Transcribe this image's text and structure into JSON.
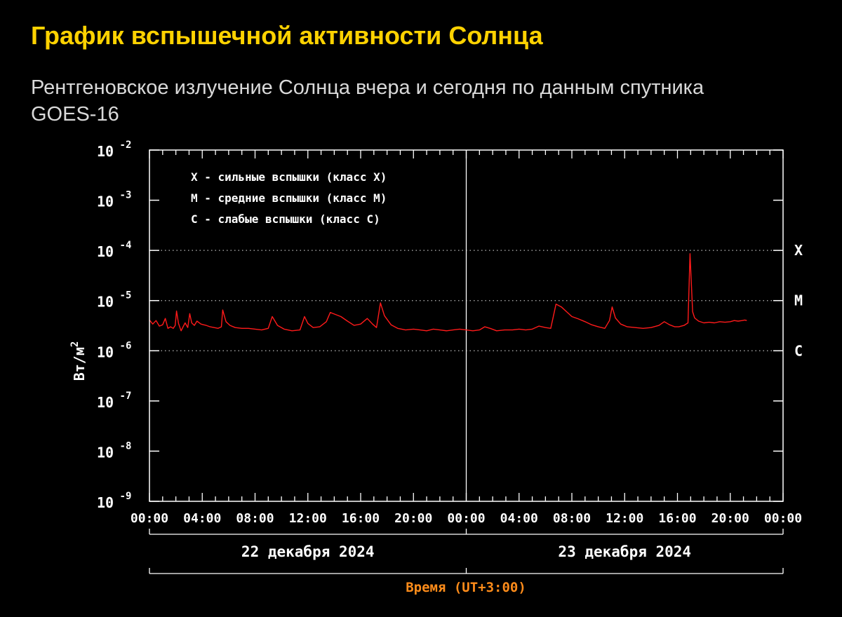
{
  "page": {
    "title": "График вспышечной активности Солнца",
    "subtitle": "Рентгеновское излучение Солнца вчера и сегодня по данным спутника GOES-16"
  },
  "chart_data": {
    "type": "line",
    "title": "",
    "xlabel": "Время (UT+3:00)",
    "ylabel": "Вт/м",
    "ylabel_sup": "2",
    "yscale": "log",
    "ylim": [
      1e-09,
      0.01
    ],
    "y_ticks": [
      {
        "value": 0.01,
        "base": "10",
        "exp": "-2"
      },
      {
        "value": 0.001,
        "base": "10",
        "exp": "-3"
      },
      {
        "value": 0.0001,
        "base": "10",
        "exp": "-4"
      },
      {
        "value": 1e-05,
        "base": "10",
        "exp": "-5"
      },
      {
        "value": 1e-06,
        "base": "10",
        "exp": "-6"
      },
      {
        "value": 1e-07,
        "base": "10",
        "exp": "-7"
      },
      {
        "value": 1e-08,
        "base": "10",
        "exp": "-8"
      },
      {
        "value": 1e-09,
        "base": "10",
        "exp": "-9"
      }
    ],
    "x_unit": "hours",
    "xlim": [
      0,
      48
    ],
    "x_ticks": [
      {
        "value": 0,
        "label": "00:00"
      },
      {
        "value": 4,
        "label": "04:00"
      },
      {
        "value": 8,
        "label": "08:00"
      },
      {
        "value": 12,
        "label": "12:00"
      },
      {
        "value": 16,
        "label": "16:00"
      },
      {
        "value": 20,
        "label": "20:00"
      },
      {
        "value": 24,
        "label": "00:00"
      },
      {
        "value": 28,
        "label": "04:00"
      },
      {
        "value": 32,
        "label": "08:00"
      },
      {
        "value": 36,
        "label": "12:00"
      },
      {
        "value": 40,
        "label": "16:00"
      },
      {
        "value": 44,
        "label": "20:00"
      },
      {
        "value": 48,
        "label": "00:00"
      }
    ],
    "days": [
      "22 декабря 2024",
      "23 декабря 2024"
    ],
    "flare_classes": [
      {
        "value": 0.0001,
        "label": "X"
      },
      {
        "value": 1e-05,
        "label": "M"
      },
      {
        "value": 1e-06,
        "label": "C"
      }
    ],
    "legend": [
      "X - сильные вспышки (класс X)",
      "M - средние вспышки (класс M)",
      "C - слабые вспышки (класс C)"
    ],
    "legend_position": "top-left",
    "grid": "dotted at flare class thresholds",
    "colors": {
      "series": "#ff1a1a",
      "axis": "#ffffff",
      "xlabel": "#ff8c1a",
      "title": "#ffd200"
    },
    "series": [
      {
        "points": [
          [
            0.0,
            4.1e-06
          ],
          [
            0.25,
            3.4e-06
          ],
          [
            0.5,
            4e-06
          ],
          [
            0.75,
            3.1e-06
          ],
          [
            1.0,
            3.3e-06
          ],
          [
            1.2,
            4.4e-06
          ],
          [
            1.4,
            2.8e-06
          ],
          [
            1.6,
            3e-06
          ],
          [
            1.8,
            2.8e-06
          ],
          [
            1.95,
            3.2e-06
          ],
          [
            2.05,
            6.2e-06
          ],
          [
            2.2,
            3.5e-06
          ],
          [
            2.4,
            2.5e-06
          ],
          [
            2.7,
            3.6e-06
          ],
          [
            2.9,
            2.9e-06
          ],
          [
            3.05,
            5.5e-06
          ],
          [
            3.2,
            3.6e-06
          ],
          [
            3.4,
            3.2e-06
          ],
          [
            3.6,
            3.9e-06
          ],
          [
            3.9,
            3.4e-06
          ],
          [
            4.1,
            3.3e-06
          ],
          [
            4.3,
            3.2e-06
          ],
          [
            4.6,
            3e-06
          ],
          [
            4.9,
            2.9e-06
          ],
          [
            5.2,
            2.8e-06
          ],
          [
            5.45,
            3e-06
          ],
          [
            5.55,
            6.5e-06
          ],
          [
            5.8,
            3.8e-06
          ],
          [
            6.1,
            3.2e-06
          ],
          [
            6.5,
            2.9e-06
          ],
          [
            7.0,
            2.8e-06
          ],
          [
            7.5,
            2.8e-06
          ],
          [
            8.0,
            2.7e-06
          ],
          [
            8.5,
            2.6e-06
          ],
          [
            9.0,
            2.8e-06
          ],
          [
            9.3,
            4.8e-06
          ],
          [
            9.7,
            3.2e-06
          ],
          [
            10.2,
            2.7e-06
          ],
          [
            10.8,
            2.5e-06
          ],
          [
            11.4,
            2.6e-06
          ],
          [
            11.75,
            4.8e-06
          ],
          [
            12.0,
            3.5e-06
          ],
          [
            12.4,
            2.9e-06
          ],
          [
            12.9,
            3e-06
          ],
          [
            13.4,
            3.8e-06
          ],
          [
            13.7,
            5.8e-06
          ],
          [
            14.0,
            5.4e-06
          ],
          [
            14.5,
            4.8e-06
          ],
          [
            15.0,
            3.9e-06
          ],
          [
            15.5,
            3.2e-06
          ],
          [
            16.0,
            3.4e-06
          ],
          [
            16.5,
            4.4e-06
          ],
          [
            16.9,
            3.4e-06
          ],
          [
            17.2,
            2.9e-06
          ],
          [
            17.5,
            9e-06
          ],
          [
            17.8,
            5e-06
          ],
          [
            18.3,
            3.3e-06
          ],
          [
            18.8,
            2.8e-06
          ],
          [
            19.4,
            2.6e-06
          ],
          [
            20.0,
            2.7e-06
          ],
          [
            20.5,
            2.6e-06
          ],
          [
            21.0,
            2.5e-06
          ],
          [
            21.5,
            2.7e-06
          ],
          [
            22.0,
            2.6e-06
          ],
          [
            22.5,
            2.5e-06
          ],
          [
            23.0,
            2.6e-06
          ],
          [
            23.5,
            2.7e-06
          ],
          [
            24.0,
            2.6e-06
          ],
          [
            24.5,
            2.5e-06
          ],
          [
            25.0,
            2.6e-06
          ],
          [
            25.4,
            3e-06
          ],
          [
            25.8,
            2.8e-06
          ],
          [
            26.3,
            2.5e-06
          ],
          [
            26.9,
            2.6e-06
          ],
          [
            27.5,
            2.6e-06
          ],
          [
            28.0,
            2.7e-06
          ],
          [
            28.5,
            2.6e-06
          ],
          [
            29.0,
            2.7e-06
          ],
          [
            29.5,
            3.1e-06
          ],
          [
            30.0,
            2.9e-06
          ],
          [
            30.4,
            2.8e-06
          ],
          [
            30.8,
            8.5e-06
          ],
          [
            31.2,
            7.5e-06
          ],
          [
            31.6,
            6e-06
          ],
          [
            32.0,
            4.8e-06
          ],
          [
            32.5,
            4.3e-06
          ],
          [
            33.0,
            3.8e-06
          ],
          [
            33.5,
            3.3e-06
          ],
          [
            34.0,
            3e-06
          ],
          [
            34.5,
            2.8e-06
          ],
          [
            34.85,
            4e-06
          ],
          [
            35.05,
            7.5e-06
          ],
          [
            35.3,
            4.5e-06
          ],
          [
            35.7,
            3.4e-06
          ],
          [
            36.2,
            3e-06
          ],
          [
            36.8,
            2.9e-06
          ],
          [
            37.4,
            2.8e-06
          ],
          [
            38.0,
            2.9e-06
          ],
          [
            38.6,
            3.2e-06
          ],
          [
            39.0,
            3.8e-06
          ],
          [
            39.4,
            3.3e-06
          ],
          [
            39.8,
            3e-06
          ],
          [
            40.1,
            3e-06
          ],
          [
            40.5,
            3.2e-06
          ],
          [
            40.8,
            3.6e-06
          ],
          [
            40.95,
            8.6e-05
          ],
          [
            41.15,
            6e-06
          ],
          [
            41.3,
            4.5e-06
          ],
          [
            41.6,
            3.9e-06
          ],
          [
            42.0,
            3.6e-06
          ],
          [
            42.4,
            3.7e-06
          ],
          [
            42.8,
            3.6e-06
          ],
          [
            43.2,
            3.8e-06
          ],
          [
            43.6,
            3.7e-06
          ],
          [
            44.0,
            3.8e-06
          ],
          [
            44.3,
            4e-06
          ],
          [
            44.6,
            3.9e-06
          ],
          [
            44.9,
            4e-06
          ],
          [
            45.1,
            4.1e-06
          ],
          [
            45.25,
            4e-06
          ]
        ]
      }
    ]
  }
}
